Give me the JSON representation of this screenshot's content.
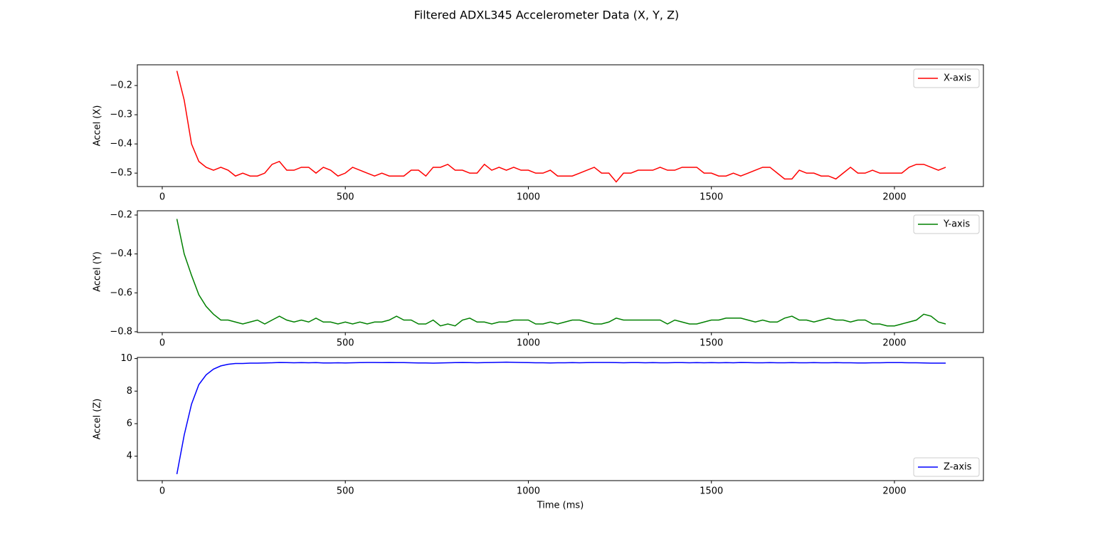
{
  "title": "Filtered ADXL345 Accelerometer Data (X, Y, Z)",
  "chart_data": [
    {
      "type": "line",
      "ylabel": "Accel (X)",
      "legend": "upper right",
      "xlim": [
        -68,
        2243
      ],
      "xticks": [
        0,
        500,
        1000,
        1500,
        2000
      ],
      "ylim": [
        -0.546,
        -0.129
      ],
      "yticks": [
        {
          "value": -0.2,
          "label": "−0.2"
        },
        {
          "value": -0.3,
          "label": "−0.3"
        },
        {
          "value": -0.4,
          "label": "−0.4"
        },
        {
          "value": -0.5,
          "label": "−0.5"
        }
      ],
      "x": [
        40,
        60,
        80,
        100,
        120,
        140,
        160,
        180,
        200,
        220,
        240,
        260,
        280,
        300,
        320,
        340,
        360,
        380,
        400,
        420,
        440,
        460,
        480,
        500,
        520,
        540,
        560,
        580,
        600,
        620,
        640,
        660,
        680,
        700,
        720,
        740,
        760,
        780,
        800,
        820,
        840,
        860,
        880,
        900,
        920,
        940,
        960,
        980,
        1000,
        1020,
        1040,
        1060,
        1080,
        1100,
        1120,
        1140,
        1160,
        1180,
        1200,
        1220,
        1240,
        1260,
        1280,
        1300,
        1320,
        1340,
        1360,
        1380,
        1400,
        1420,
        1440,
        1460,
        1480,
        1500,
        1520,
        1540,
        1560,
        1580,
        1600,
        1620,
        1640,
        1660,
        1680,
        1700,
        1720,
        1740,
        1760,
        1780,
        1800,
        1820,
        1840,
        1860,
        1880,
        1900,
        1920,
        1940,
        1960,
        1980,
        2000,
        2020,
        2040,
        2060,
        2080,
        2100,
        2120,
        2140
      ],
      "series": [
        {
          "name": "X-axis",
          "color": "#ff0000",
          "values": [
            -0.15,
            -0.25,
            -0.4,
            -0.46,
            -0.48,
            -0.49,
            -0.48,
            -0.49,
            -0.51,
            -0.5,
            -0.51,
            -0.51,
            -0.5,
            -0.47,
            -0.46,
            -0.49,
            -0.49,
            -0.48,
            -0.48,
            -0.5,
            -0.48,
            -0.49,
            -0.51,
            -0.5,
            -0.48,
            -0.49,
            -0.5,
            -0.51,
            -0.5,
            -0.51,
            -0.51,
            -0.51,
            -0.49,
            -0.49,
            -0.51,
            -0.48,
            -0.48,
            -0.47,
            -0.49,
            -0.49,
            -0.5,
            -0.5,
            -0.47,
            -0.49,
            -0.48,
            -0.49,
            -0.48,
            -0.49,
            -0.49,
            -0.5,
            -0.5,
            -0.49,
            -0.51,
            -0.51,
            -0.51,
            -0.5,
            -0.49,
            -0.48,
            -0.5,
            -0.5,
            -0.53,
            -0.5,
            -0.5,
            -0.49,
            -0.49,
            -0.49,
            -0.48,
            -0.49,
            -0.49,
            -0.48,
            -0.48,
            -0.48,
            -0.5,
            -0.5,
            -0.51,
            -0.51,
            -0.5,
            -0.51,
            -0.5,
            -0.49,
            -0.48,
            -0.48,
            -0.5,
            -0.52,
            -0.52,
            -0.49,
            -0.5,
            -0.5,
            -0.51,
            -0.51,
            -0.52,
            -0.5,
            -0.48,
            -0.5,
            -0.5,
            -0.49,
            -0.5,
            -0.5,
            -0.5,
            -0.5,
            -0.48,
            -0.47,
            -0.47,
            -0.48,
            -0.49,
            -0.48
          ]
        }
      ]
    },
    {
      "type": "line",
      "ylabel": "Accel (Y)",
      "legend": "upper right",
      "xlim": [
        -68,
        2243
      ],
      "xticks": [
        0,
        500,
        1000,
        1500,
        2000
      ],
      "ylim": [
        -0.804,
        -0.178
      ],
      "yticks": [
        {
          "value": -0.2,
          "label": "−0.2"
        },
        {
          "value": -0.4,
          "label": "−0.4"
        },
        {
          "value": -0.6,
          "label": "−0.6"
        },
        {
          "value": -0.8,
          "label": "−0.8"
        }
      ],
      "x": [
        40,
        60,
        80,
        100,
        120,
        140,
        160,
        180,
        200,
        220,
        240,
        260,
        280,
        300,
        320,
        340,
        360,
        380,
        400,
        420,
        440,
        460,
        480,
        500,
        520,
        540,
        560,
        580,
        600,
        620,
        640,
        660,
        680,
        700,
        720,
        740,
        760,
        780,
        800,
        820,
        840,
        860,
        880,
        900,
        920,
        940,
        960,
        980,
        1000,
        1020,
        1040,
        1060,
        1080,
        1100,
        1120,
        1140,
        1160,
        1180,
        1200,
        1220,
        1240,
        1260,
        1280,
        1300,
        1320,
        1340,
        1360,
        1380,
        1400,
        1420,
        1440,
        1460,
        1480,
        1500,
        1520,
        1540,
        1560,
        1580,
        1600,
        1620,
        1640,
        1660,
        1680,
        1700,
        1720,
        1740,
        1760,
        1780,
        1800,
        1820,
        1840,
        1860,
        1880,
        1900,
        1920,
        1940,
        1960,
        1980,
        2000,
        2020,
        2040,
        2060,
        2080,
        2100,
        2120,
        2140
      ],
      "series": [
        {
          "name": "Y-axis",
          "color": "#008000",
          "values": [
            -0.22,
            -0.4,
            -0.51,
            -0.61,
            -0.67,
            -0.71,
            -0.74,
            -0.74,
            -0.75,
            -0.76,
            -0.75,
            -0.74,
            -0.76,
            -0.74,
            -0.72,
            -0.74,
            -0.75,
            -0.74,
            -0.75,
            -0.73,
            -0.75,
            -0.75,
            -0.76,
            -0.75,
            -0.76,
            -0.75,
            -0.76,
            -0.75,
            -0.75,
            -0.74,
            -0.72,
            -0.74,
            -0.74,
            -0.76,
            -0.76,
            -0.74,
            -0.77,
            -0.76,
            -0.77,
            -0.74,
            -0.73,
            -0.75,
            -0.75,
            -0.76,
            -0.75,
            -0.75,
            -0.74,
            -0.74,
            -0.74,
            -0.76,
            -0.76,
            -0.75,
            -0.76,
            -0.75,
            -0.74,
            -0.74,
            -0.75,
            -0.76,
            -0.76,
            -0.75,
            -0.73,
            -0.74,
            -0.74,
            -0.74,
            -0.74,
            -0.74,
            -0.74,
            -0.76,
            -0.74,
            -0.75,
            -0.76,
            -0.76,
            -0.75,
            -0.74,
            -0.74,
            -0.73,
            -0.73,
            -0.73,
            -0.74,
            -0.75,
            -0.74,
            -0.75,
            -0.75,
            -0.73,
            -0.72,
            -0.74,
            -0.74,
            -0.75,
            -0.74,
            -0.73,
            -0.74,
            -0.74,
            -0.75,
            -0.74,
            -0.74,
            -0.76,
            -0.76,
            -0.77,
            -0.77,
            -0.76,
            -0.75,
            -0.74,
            -0.71,
            -0.72,
            -0.75,
            -0.76
          ]
        }
      ]
    },
    {
      "type": "line",
      "ylabel": "Accel (Z)",
      "xlabel": "Time (ms)",
      "legend": "lower right",
      "xlim": [
        -68,
        2243
      ],
      "xticks": [
        0,
        500,
        1000,
        1500,
        2000
      ],
      "ylim": [
        2.5,
        10.07
      ],
      "yticks": [
        4,
        6,
        8,
        10
      ],
      "x": [
        40,
        60,
        80,
        100,
        120,
        140,
        160,
        180,
        200,
        220,
        240,
        260,
        280,
        300,
        320,
        340,
        360,
        380,
        400,
        420,
        440,
        460,
        480,
        500,
        520,
        540,
        560,
        580,
        600,
        620,
        640,
        660,
        680,
        700,
        720,
        740,
        760,
        780,
        800,
        820,
        840,
        860,
        880,
        900,
        920,
        940,
        960,
        980,
        1000,
        1020,
        1040,
        1060,
        1080,
        1100,
        1120,
        1140,
        1160,
        1180,
        1200,
        1220,
        1240,
        1260,
        1280,
        1300,
        1320,
        1340,
        1360,
        1380,
        1400,
        1420,
        1440,
        1460,
        1480,
        1500,
        1520,
        1540,
        1560,
        1580,
        1600,
        1620,
        1640,
        1660,
        1680,
        1700,
        1720,
        1740,
        1760,
        1780,
        1800,
        1820,
        1840,
        1860,
        1880,
        1900,
        1920,
        1940,
        1960,
        1980,
        2000,
        2020,
        2040,
        2060,
        2080,
        2100,
        2120,
        2140
      ],
      "series": [
        {
          "name": "Z-axis",
          "color": "#0000ff",
          "values": [
            2.9,
            5.3,
            7.2,
            8.4,
            9.0,
            9.35,
            9.55,
            9.65,
            9.7,
            9.7,
            9.72,
            9.72,
            9.73,
            9.74,
            9.76,
            9.75,
            9.74,
            9.75,
            9.74,
            9.75,
            9.73,
            9.73,
            9.74,
            9.73,
            9.74,
            9.75,
            9.76,
            9.76,
            9.75,
            9.76,
            9.75,
            9.75,
            9.74,
            9.73,
            9.73,
            9.72,
            9.73,
            9.74,
            9.75,
            9.76,
            9.75,
            9.74,
            9.75,
            9.76,
            9.77,
            9.78,
            9.77,
            9.76,
            9.75,
            9.74,
            9.74,
            9.73,
            9.74,
            9.74,
            9.75,
            9.74,
            9.75,
            9.76,
            9.76,
            9.76,
            9.75,
            9.74,
            9.75,
            9.75,
            9.74,
            9.75,
            9.74,
            9.74,
            9.75,
            9.75,
            9.74,
            9.75,
            9.74,
            9.75,
            9.74,
            9.75,
            9.74,
            9.76,
            9.75,
            9.74,
            9.74,
            9.75,
            9.74,
            9.74,
            9.75,
            9.74,
            9.74,
            9.75,
            9.74,
            9.74,
            9.75,
            9.74,
            9.74,
            9.73,
            9.73,
            9.74,
            9.74,
            9.75,
            9.75,
            9.75,
            9.74,
            9.74,
            9.73,
            9.72,
            9.72,
            9.72
          ]
        }
      ]
    }
  ]
}
